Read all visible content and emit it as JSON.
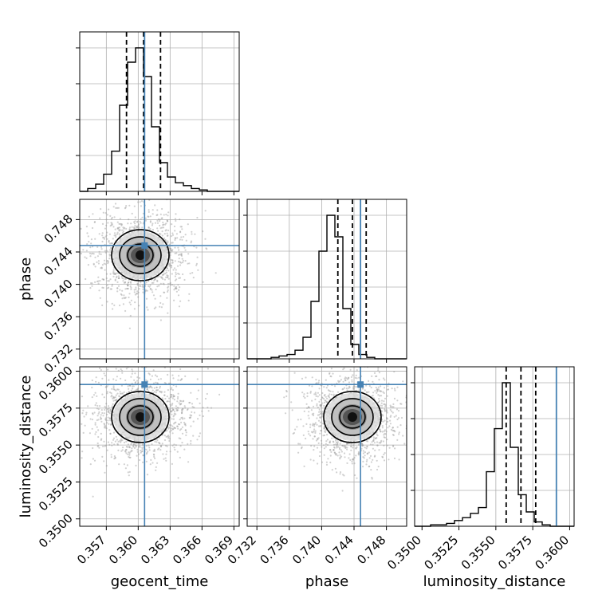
{
  "chart_data": {
    "type": "corner",
    "parameters": [
      "geocent_time",
      "phase",
      "luminosity_distance"
    ],
    "axis_labels": [
      "geocent_time",
      "phase",
      "luminosity_distance"
    ],
    "ranges": [
      [
        0.3545,
        0.3695
      ],
      [
        0.7308,
        0.7505
      ],
      [
        0.3495,
        0.3603
      ]
    ],
    "ticks": [
      {
        "values": [
          0.357,
          0.36,
          0.363,
          0.366,
          0.369
        ],
        "labels": [
          "0.357",
          "0.360",
          "0.363",
          "0.366",
          "0.369"
        ]
      },
      {
        "values": [
          0.732,
          0.736,
          0.74,
          0.744,
          0.748
        ],
        "labels": [
          "0.732",
          "0.736",
          "0.740",
          "0.744",
          "0.748"
        ]
      },
      {
        "values": [
          0.35,
          0.3525,
          0.355,
          0.3575,
          0.36
        ],
        "labels": [
          "0.3500",
          "0.3525",
          "0.3550",
          "0.3575",
          "0.3600"
        ]
      }
    ],
    "truths": [
      0.3606,
      0.7448,
      0.3591
    ],
    "quantiles": [
      [
        0.3589,
        0.3605,
        0.3621
      ],
      [
        0.742,
        0.7438,
        0.7455
      ],
      [
        0.3557,
        0.3567,
        0.3577
      ]
    ],
    "histograms": [
      {
        "edges_from": 0.3545,
        "edges_to": 0.3695,
        "counts": [
          0,
          2,
          5,
          12,
          28,
          60,
          90,
          100,
          80,
          45,
          20,
          10,
          6,
          4,
          2,
          1,
          0,
          0,
          0,
          0
        ]
      },
      {
        "edges_from": 0.7308,
        "edges_to": 0.7505,
        "counts": [
          0,
          0,
          0,
          1,
          2,
          3,
          6,
          15,
          40,
          75,
          100,
          85,
          35,
          10,
          3,
          1,
          0,
          0,
          0,
          0
        ]
      },
      {
        "edges_from": 0.3495,
        "edges_to": 0.3603,
        "counts": [
          0,
          0,
          1,
          1,
          2,
          4,
          6,
          9,
          13,
          38,
          68,
          100,
          55,
          22,
          10,
          3,
          1,
          0,
          0,
          0
        ]
      }
    ],
    "density_centers": {
      "1_0": [
        0.3602,
        0.7436
      ],
      "2_0": [
        0.3602,
        0.3569
      ],
      "2_1": [
        0.7438,
        0.3569
      ]
    },
    "grid": true,
    "truth_color": "#4682b4",
    "line_color": "#000000",
    "point_color": "#999999"
  }
}
